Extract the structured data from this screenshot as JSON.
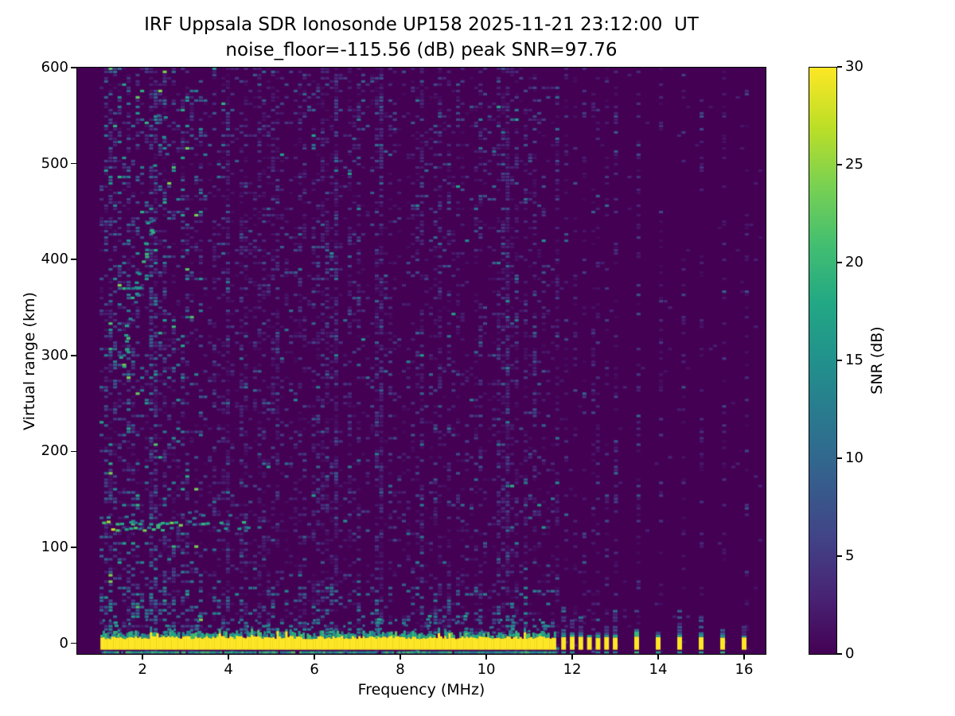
{
  "title": {
    "line1": "IRF Uppsala SDR Ionosonde UP158 2025-11-21 23:12:00  UT",
    "line2": "noise_floor=-115.56 (dB) peak SNR=97.76"
  },
  "chart_data": {
    "type": "heatmap",
    "title": "IRF Uppsala SDR Ionosonde UP158 2025-11-21 23:12:00  UT",
    "subtitle": "noise_floor=-115.56 (dB) peak SNR=97.76",
    "station": "UP158",
    "timestamp_ut": "2025-11-21 23:12:00",
    "noise_floor_db": -115.56,
    "peak_snr_db": 97.76,
    "xlabel": "Frequency (MHz)",
    "ylabel": "Virtual range (km)",
    "xlim": [
      0.48,
      16.5
    ],
    "ylim": [
      -11,
      600
    ],
    "xticks": [
      2,
      4,
      6,
      8,
      10,
      12,
      14,
      16
    ],
    "yticks": [
      0,
      100,
      200,
      300,
      400,
      500,
      600
    ],
    "grid": false,
    "background_color": "#ffffff",
    "colorbar": {
      "label": "SNR (dB)",
      "min": 0,
      "max": 30,
      "ticks": [
        0,
        5,
        10,
        15,
        20,
        25,
        30
      ],
      "colormap": "viridis"
    },
    "viridis_stops": [
      "#440154",
      "#482475",
      "#414487",
      "#355f8d",
      "#2a788e",
      "#21918c",
      "#22a884",
      "#44bf70",
      "#7ad151",
      "#bddf26",
      "#fde725"
    ],
    "sweep": {
      "start_mhz": 1.0,
      "continuous_end_mhz": 11.62,
      "stepped_freqs_mhz": [
        11.8,
        12.0,
        12.2,
        12.4,
        12.6,
        12.8,
        13.0,
        13.5,
        14.0,
        14.5,
        15.0,
        15.5,
        16.0
      ]
    },
    "features": {
      "transmit_band": {
        "freq_mhz": [
          1.02,
          11.62
        ],
        "range_km": [
          -6.5,
          6.5
        ],
        "snr_db": 30
      },
      "band_fringe": {
        "range_km": [
          7,
          30
        ],
        "snr_db": [
          8,
          20
        ]
      },
      "ground_line": {
        "freq_mhz": [
          1.05,
          11.62
        ],
        "range_km": -8.3,
        "snr_db": [
          11,
          22
        ]
      },
      "e_region_trace": {
        "freq_mhz": [
          1.06,
          4.5
        ],
        "range_km": [
          115,
          130
        ],
        "snr_db": [
          10,
          27
        ]
      },
      "oblique_trace": {
        "from_mhz_km": [
          1.48,
          293
        ],
        "to_mhz_km": [
          2.2,
          445
        ],
        "snr_db": [
          10,
          21
        ]
      },
      "active_echo_zone": {
        "freq_mhz": [
          1.0,
          3.5
        ],
        "range_km": [
          0,
          600
        ],
        "snr_db": [
          2,
          24
        ]
      },
      "rfi_stripe_freqs_mhz": [
        2.95,
        3.95,
        5.05,
        6.4,
        7.5,
        9.3,
        10.4
      ],
      "fringe_bump_freqs_mhz": [
        1.3,
        2.5,
        3.25,
        4.85,
        6.3,
        7.45,
        8.6,
        9.5,
        10.55,
        11.3
      ],
      "background_noise_db": [
        0,
        8
      ]
    }
  }
}
